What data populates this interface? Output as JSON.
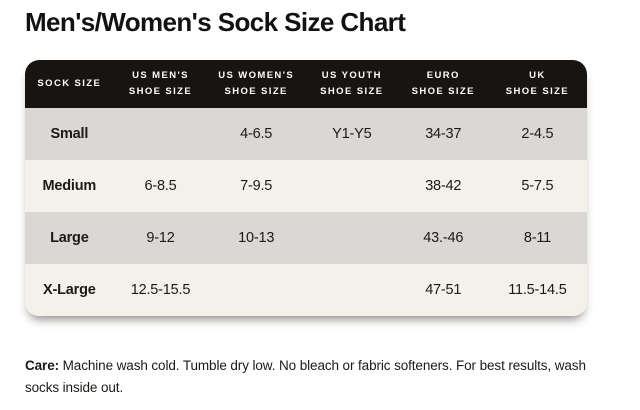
{
  "page": {
    "title": "Men's/Women's Sock Size Chart"
  },
  "theme": {
    "header_bg": "#171411",
    "header_text": "#ffffff",
    "row_gray": "#d9d8d5",
    "row_cream": "#f4f1eb"
  },
  "table": {
    "header": {
      "cells": [
        {
          "line1": "Sock Size",
          "line2": ""
        },
        {
          "line1": "US Men's",
          "line2": "Shoe Size"
        },
        {
          "line1": "US Women's",
          "line2": "Shoe Size"
        },
        {
          "line1": "US Youth",
          "line2": "Shoe Size"
        },
        {
          "line1": "Euro",
          "line2": "Shoe Size"
        },
        {
          "line1": "UK",
          "line2": "Shoe Size"
        }
      ]
    },
    "rows": [
      {
        "size": "Small",
        "us_mens": "",
        "us_womens": "4-6.5",
        "us_youth": "Y1-Y5",
        "euro": "34-37",
        "uk": "2-4.5"
      },
      {
        "size": "Medium",
        "us_mens": "6-8.5",
        "us_womens": "7-9.5",
        "us_youth": "",
        "euro": "38-42",
        "uk": "5-7.5"
      },
      {
        "size": "Large",
        "us_mens": "9-12",
        "us_womens": "10-13",
        "us_youth": "",
        "euro": "43.-46",
        "uk": "8-11"
      },
      {
        "size": "X-Large",
        "us_mens": "12.5-15.5",
        "us_womens": "",
        "us_youth": "",
        "euro": "47-51",
        "uk": "11.5-14.5"
      }
    ]
  },
  "care": {
    "label": "Care:",
    "text": " Machine wash cold. Tumble dry low. No bleach or fabric softeners. For best results, wash socks inside out."
  }
}
